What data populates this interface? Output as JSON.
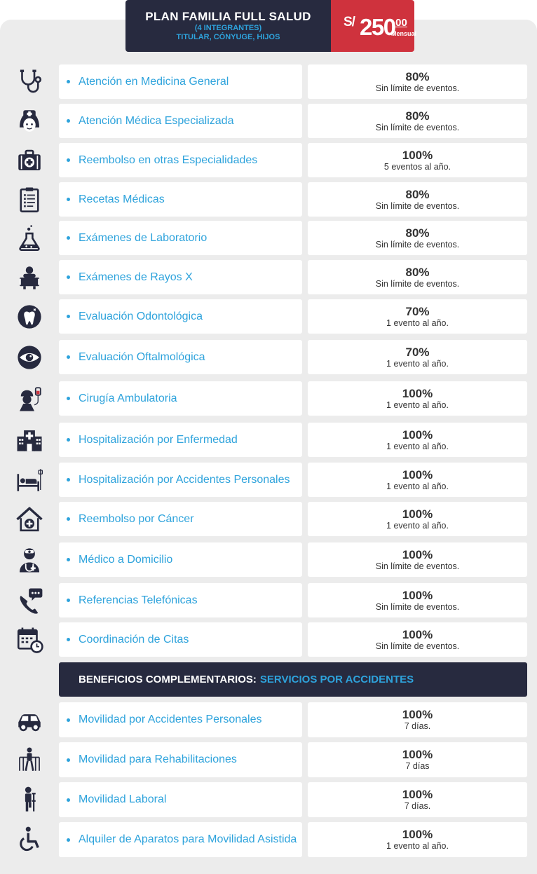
{
  "plan": {
    "title": "PLAN FAMILIA FULL SALUD",
    "subtitle1": "(4 INTEGRANTES)",
    "subtitle2": "TITULAR, CÓNYUGE, HIJOS",
    "currency": "S/",
    "amount": "250",
    "decimals": ".00",
    "period": "Mensual"
  },
  "colors": {
    "navy": "#272a3f",
    "accent_blue": "#2ea3dc",
    "red": "#cf323d",
    "panel": "#ececec"
  },
  "benefits": [
    {
      "icon": "stethoscope-icon",
      "label": "Atención en Medicina General",
      "percent": "80%",
      "note": "Sin límite de eventos."
    },
    {
      "icon": "nurse-icon",
      "label": "Atención Médica Especializada",
      "percent": "80%",
      "note": "Sin límite de eventos."
    },
    {
      "icon": "medical-kit-icon",
      "label": "Reembolso en otras Especialidades",
      "percent": "100%",
      "note": "5 eventos al año."
    },
    {
      "icon": "prescription-clipboard-icon",
      "label": "Recetas Médicas",
      "percent": "80%",
      "note": "Sin límite de eventos."
    },
    {
      "icon": "lab-flask-icon",
      "label": "Exámenes de Laboratorio",
      "percent": "80%",
      "note": "Sin límite de eventos."
    },
    {
      "icon": "xray-scanner-icon",
      "label": "Exámenes de Rayos X",
      "percent": "80%",
      "note": "Sin límite de eventos."
    },
    {
      "icon": "tooth-icon",
      "label": "Evaluación Odontológica",
      "percent": "70%",
      "note": "1 evento al año."
    },
    {
      "icon": "eye-icon",
      "label": "Evaluación Oftalmológica",
      "percent": "70%",
      "note": "1 evento al año."
    },
    {
      "icon": "surgery-patient-icon",
      "label": "Cirugía Ambulatoria",
      "percent": "100%",
      "note": "1 evento al año."
    },
    {
      "icon": "hospital-building-icon",
      "label": "Hospitalización por Enfermedad",
      "percent": "100%",
      "note": "1 evento al año."
    },
    {
      "icon": "hospital-bed-icon",
      "label": "Hospitalización por Accidentes Personales",
      "percent": "100%",
      "note": "1 evento al año."
    },
    {
      "icon": "home-health-icon",
      "label": "Reembolso por Cáncer",
      "percent": "100%",
      "note": "1 evento al año."
    },
    {
      "icon": "doctor-icon",
      "label": "Médico a Domicilio",
      "percent": "100%",
      "note": "Sin límite de eventos."
    },
    {
      "icon": "phone-chat-icon",
      "label": "Referencias Telefónicas",
      "percent": "100%",
      "note": "Sin límite de eventos."
    },
    {
      "icon": "calendar-clock-icon",
      "label": "Coordinación de Citas",
      "percent": "100%",
      "note": "Sin límite de eventos."
    }
  ],
  "section": {
    "title": "BENEFICIOS COMPLEMENTARIOS:",
    "highlight": "SERVICIOS POR ACCIDENTES"
  },
  "complementary": [
    {
      "icon": "car-icon",
      "label": "Movilidad por Accidentes Personales",
      "percent": "100%",
      "note": "7 días."
    },
    {
      "icon": "walker-icon",
      "label": "Movilidad para Rehabilitaciones",
      "percent": "100%",
      "note": "7 días"
    },
    {
      "icon": "crutch-person-icon",
      "label": "Movilidad Laboral",
      "percent": "100%",
      "note": "7 días."
    },
    {
      "icon": "wheelchair-icon",
      "label": "Alquiler de Aparatos para Movilidad Asistida",
      "percent": "100%",
      "note": "1 evento al año."
    }
  ]
}
